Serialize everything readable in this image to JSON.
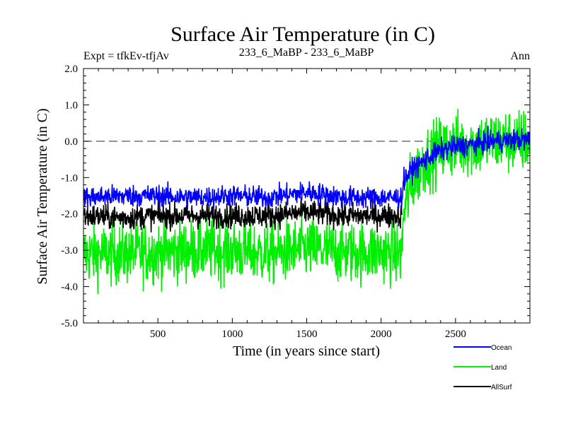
{
  "chart_data": {
    "type": "line",
    "title": "Surface Air Temperature (in C)",
    "subtitle_left": "Expt = tfkEv-tfjAv",
    "subtitle_center": "233_6_MaBP - 233_6_MaBP",
    "subtitle_right": "Ann",
    "xlabel": "Time (in years since start)",
    "ylabel": "Surface Air Temperature (in C)",
    "xlim": [
      0,
      3000
    ],
    "ylim": [
      -5.0,
      2.0
    ],
    "xticks": [
      500,
      1000,
      1500,
      2000,
      2500
    ],
    "yticks": [
      "2.0",
      "1.0",
      "0.0",
      "-1.0",
      "-2.0",
      "-3.0",
      "-4.0",
      "-5.0"
    ],
    "reference_line": 0.0,
    "legend_position": "bottom-right, outside plot",
    "series": [
      {
        "name": "Land",
        "color": "#00ee00",
        "x": [
          0,
          250,
          500,
          750,
          1000,
          1250,
          1500,
          1750,
          2000,
          2140,
          2150,
          2200,
          2300,
          2400,
          2500,
          2600,
          2750,
          3000
        ],
        "y": [
          -3.1,
          -3.1,
          -3.05,
          -3.0,
          -3.0,
          -3.1,
          -2.95,
          -3.05,
          -3.05,
          -3.1,
          -2.0,
          -1.2,
          -0.5,
          -0.2,
          -0.1,
          -0.1,
          0.0,
          0.0
        ]
      },
      {
        "name": "AllSurf",
        "color": "#000000",
        "x": [
          0,
          250,
          500,
          750,
          1000,
          1250,
          1500,
          1750,
          2000,
          2140
        ],
        "y": [
          -2.05,
          -2.1,
          -2.05,
          -2.05,
          -2.05,
          -2.05,
          -1.95,
          -2.05,
          -2.05,
          -2.05
        ]
      },
      {
        "name": "Ocean",
        "color": "#0000ff",
        "x": [
          0,
          250,
          500,
          750,
          1000,
          1250,
          1500,
          1750,
          2000,
          2140,
          2150,
          2200,
          2300,
          2400,
          2500,
          2600,
          2750,
          3000
        ],
        "y": [
          -1.55,
          -1.5,
          -1.5,
          -1.55,
          -1.5,
          -1.55,
          -1.4,
          -1.55,
          -1.55,
          -1.55,
          -1.1,
          -0.8,
          -0.5,
          -0.25,
          -0.15,
          -0.1,
          0.0,
          0.05
        ]
      }
    ]
  }
}
